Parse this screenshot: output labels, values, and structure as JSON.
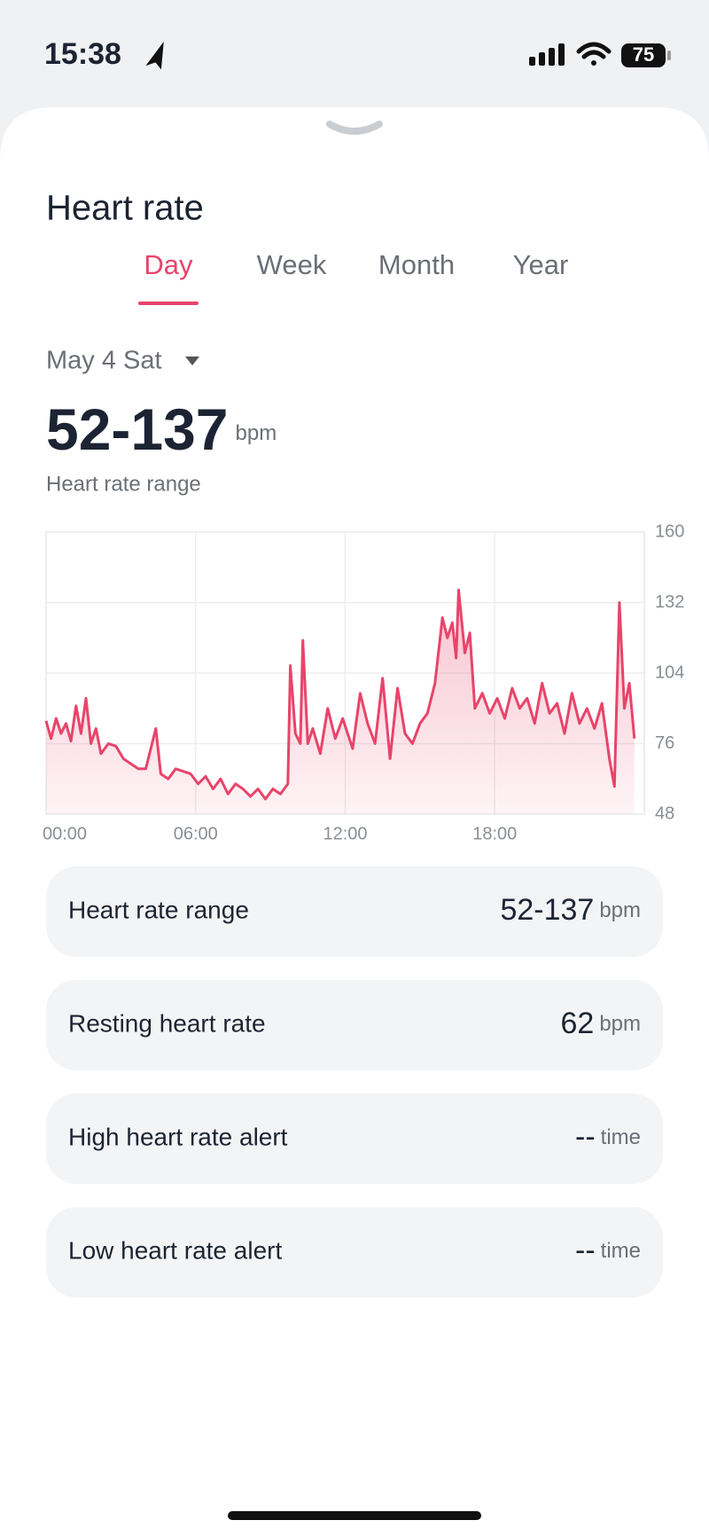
{
  "status_bar": {
    "time": "15:38",
    "battery": "75"
  },
  "header": {
    "title": "Heart rate"
  },
  "tabs": {
    "items": [
      "Day",
      "Week",
      "Month",
      "Year"
    ],
    "active": 0
  },
  "date": "May 4 Sat",
  "summary": {
    "value": "52-137",
    "unit": "bpm",
    "label": "Heart rate range"
  },
  "chart_data": {
    "type": "area",
    "color": "#e8446a",
    "x": [
      0.0,
      0.2,
      0.4,
      0.6,
      0.8,
      1.0,
      1.2,
      1.4,
      1.6,
      1.8,
      2.0,
      2.2,
      2.5,
      2.8,
      3.1,
      3.4,
      3.7,
      4.0,
      4.4,
      4.6,
      4.9,
      5.2,
      5.5,
      5.8,
      6.1,
      6.4,
      6.7,
      7.0,
      7.3,
      7.6,
      7.9,
      8.2,
      8.5,
      8.8,
      9.1,
      9.4,
      9.7,
      9.8,
      10.0,
      10.2,
      10.3,
      10.5,
      10.7,
      11.0,
      11.3,
      11.6,
      11.9,
      12.3,
      12.6,
      12.9,
      13.2,
      13.5,
      13.8,
      14.1,
      14.4,
      14.7,
      15.0,
      15.3,
      15.6,
      15.9,
      16.1,
      16.3,
      16.45,
      16.55,
      16.8,
      17.0,
      17.2,
      17.5,
      17.8,
      18.1,
      18.4,
      18.7,
      19.0,
      19.3,
      19.6,
      19.9,
      20.2,
      20.5,
      20.8,
      21.1,
      21.4,
      21.7,
      22.0,
      22.3,
      22.6,
      22.8,
      23.0,
      23.2,
      23.4,
      23.6
    ],
    "values": [
      85,
      78,
      86,
      80,
      84,
      77,
      91,
      80,
      94,
      76,
      82,
      72,
      76,
      75,
      70,
      68,
      66,
      66,
      82,
      64,
      62,
      66,
      65,
      64,
      60,
      63,
      58,
      62,
      56,
      60,
      58,
      55,
      58,
      54,
      58,
      56,
      60,
      107,
      80,
      76,
      117,
      76,
      82,
      72,
      90,
      78,
      86,
      74,
      96,
      84,
      76,
      102,
      70,
      98,
      80,
      76,
      84,
      88,
      100,
      126,
      118,
      124,
      110,
      137,
      112,
      120,
      90,
      96,
      88,
      94,
      86,
      98,
      90,
      94,
      84,
      100,
      88,
      92,
      80,
      96,
      84,
      90,
      82,
      92,
      70,
      59,
      132,
      90,
      100,
      78
    ],
    "xlim": [
      0,
      24
    ],
    "xticks": [
      {
        "value": 0,
        "label": "00:00"
      },
      {
        "value": 6,
        "label": "06:00"
      },
      {
        "value": 12,
        "label": "12:00"
      },
      {
        "value": 18,
        "label": "18:00"
      }
    ],
    "ylim": [
      48,
      160
    ],
    "yticks": [
      160,
      132,
      104,
      76,
      48
    ],
    "grid": true,
    "y_axis_side": "right"
  },
  "stats": [
    {
      "label": "Heart rate range",
      "value": "52-137",
      "unit": "bpm"
    },
    {
      "label": "Resting heart rate",
      "value": "62",
      "unit": "bpm"
    },
    {
      "label": "High heart rate alert",
      "value": "--",
      "unit": "time"
    },
    {
      "label": "Low heart rate alert",
      "value": "--",
      "unit": "time"
    }
  ]
}
